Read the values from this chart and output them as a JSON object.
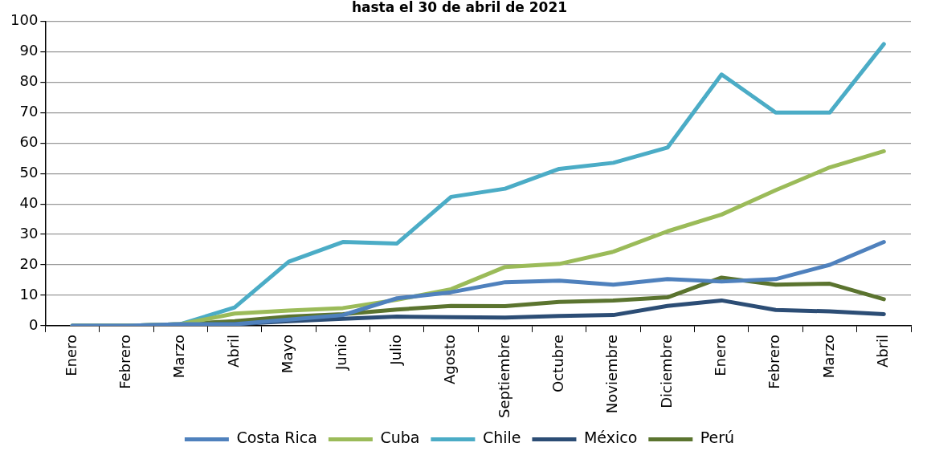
{
  "chart_data": {
    "type": "line",
    "title": "hasta el 30 de abril de 2021",
    "categories": [
      "Enero",
      "Febrero",
      "Marzo",
      "Abril",
      "Mayo",
      "Junio",
      "Julio",
      "Agosto",
      "Septiembre",
      "Octubre",
      "Noviembre",
      "Diciembre",
      "Enero",
      "Febrero",
      "Marzo",
      "Abril"
    ],
    "series": [
      {
        "name": "Costa Rica",
        "color": "#4f81bd",
        "values": [
          0,
          0,
          0.5,
          0.5,
          2,
          3.5,
          9,
          11,
          14.3,
          14.8,
          13.5,
          15.3,
          14.5,
          15.3,
          20,
          27.5
        ]
      },
      {
        "name": "Cuba",
        "color": "#9bbb59",
        "values": [
          0,
          0,
          0.5,
          4,
          5,
          5.8,
          8.5,
          12,
          19.3,
          20.3,
          24.3,
          31,
          36.5,
          44.5,
          52,
          57.3
        ]
      },
      {
        "name": "Chile",
        "color": "#4bacc6",
        "values": [
          0,
          0,
          0.5,
          6,
          21,
          27.5,
          27,
          42.3,
          45,
          51.5,
          53.5,
          58.5,
          82.5,
          70,
          70,
          92.5
        ]
      },
      {
        "name": "México",
        "color": "#2c4d75",
        "values": [
          0,
          0,
          0.3,
          0.5,
          1.5,
          2.3,
          3,
          2.8,
          2.7,
          3.2,
          3.5,
          6.5,
          8.3,
          5.2,
          4.7,
          3.8
        ]
      },
      {
        "name": "Perú",
        "color": "#5b742f",
        "values": [
          0,
          0,
          0.5,
          1.5,
          3,
          3.8,
          5.3,
          6.5,
          6.4,
          7.8,
          8.3,
          9.3,
          15.8,
          13.5,
          13.8,
          8.7
        ]
      }
    ],
    "ylim": [
      0,
      100
    ],
    "yticks": [
      0,
      10,
      20,
      30,
      40,
      50,
      60,
      70,
      80,
      90,
      100
    ],
    "grid": "y",
    "legend": "bottom",
    "marker": "none",
    "line_style": "solid"
  }
}
